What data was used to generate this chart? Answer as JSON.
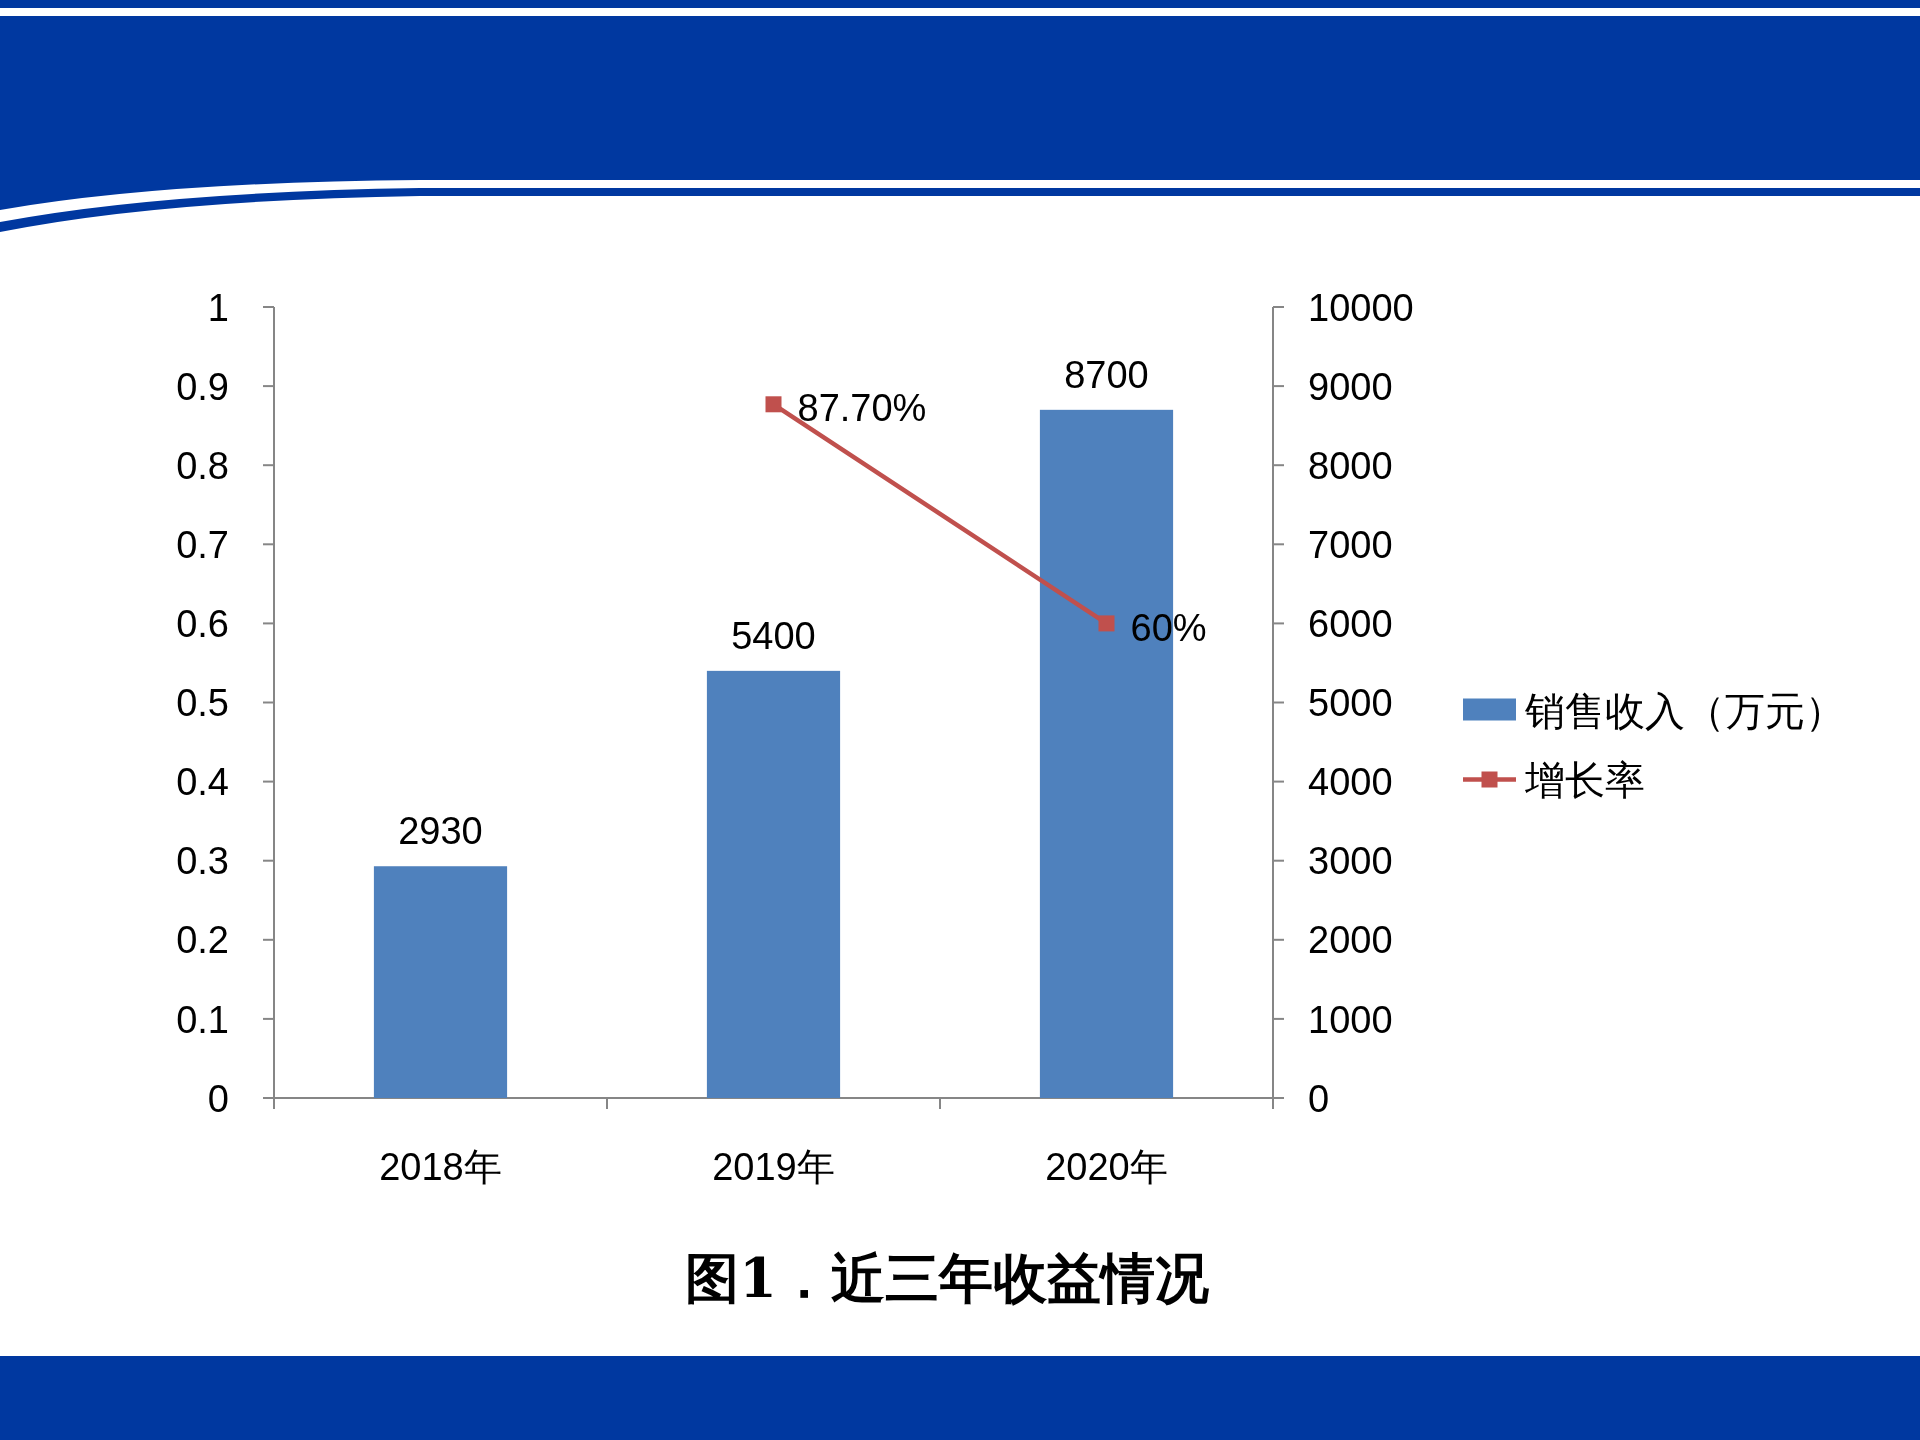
{
  "chart_data": {
    "type": "bar",
    "categories": [
      "2018年",
      "2019年",
      "2020年"
    ],
    "series": [
      {
        "name": "销售收入（万元）",
        "color": "#4f81bd",
        "axis": "y2",
        "values": [
          2930,
          5400,
          8700
        ],
        "value_labels": [
          "2930",
          "5400",
          "8700"
        ]
      },
      {
        "name": "增长率",
        "type": "line",
        "color": "#c0504d",
        "marker": "square",
        "values": [
          null,
          0.877,
          0.6
        ],
        "value_labels": [
          null,
          "87.70%",
          "60%"
        ]
      }
    ],
    "ylim": [
      0,
      1
    ],
    "yticks": [
      0,
      0.1,
      0.2,
      0.3,
      0.4,
      0.5,
      0.6,
      0.7,
      0.8,
      0.9,
      1
    ],
    "y2lim": [
      0,
      10000
    ],
    "y2ticks": [
      0,
      1000,
      2000,
      3000,
      4000,
      5000,
      6000,
      7000,
      8000,
      9000,
      10000
    ],
    "legend": "right",
    "grid": false,
    "annotations": [
      "图1．近三年收益情况"
    ]
  }
}
